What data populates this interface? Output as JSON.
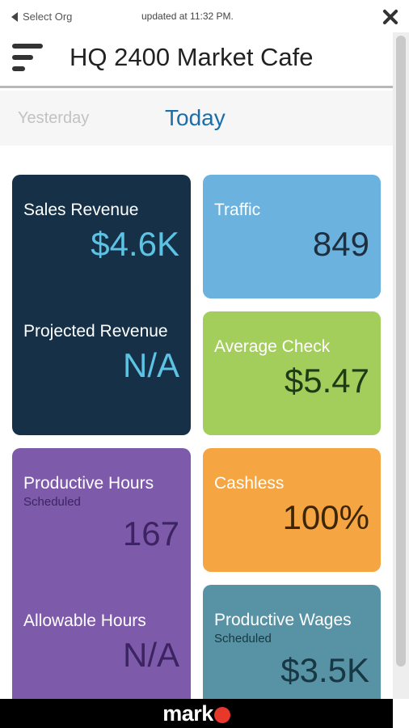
{
  "topbar": {
    "back_label": "Select Org",
    "updated_text": "updated at 11:32 PM."
  },
  "header": {
    "title": "HQ 2400 Market Cafe"
  },
  "tabs": [
    {
      "label": "Yesterday",
      "active": false
    },
    {
      "label": "Today",
      "active": true
    }
  ],
  "tiles": {
    "sales_revenue": {
      "label": "Sales Revenue",
      "value": "$4.6K",
      "color": "#163147",
      "value_color": "#5dc3e4"
    },
    "projected_revenue": {
      "label": "Projected Revenue",
      "value": "N/A",
      "value_color": "#5dc3e4"
    },
    "traffic": {
      "label": "Traffic",
      "value": "849",
      "color": "#6cb2df"
    },
    "average_check": {
      "label": "Average Check",
      "value": "$5.47",
      "color": "#a4ce5b"
    },
    "productive_hours": {
      "label": "Productive Hours",
      "sub": "Scheduled",
      "value": "167",
      "color": "#7e5aab"
    },
    "allowable_hours": {
      "label": "Allowable Hours",
      "value": "N/A"
    },
    "cashless": {
      "label": "Cashless",
      "value": "100%",
      "color": "#f5a541"
    },
    "productive_wages": {
      "label": "Productive Wages",
      "sub": "Scheduled",
      "value": "$3.5K",
      "color": "#5893a5"
    }
  },
  "footer": {
    "brand": "mark",
    "brand_dot_color": "#e8372b"
  },
  "icons": [
    "back-arrow-icon",
    "close-icon",
    "menu-icon"
  ]
}
